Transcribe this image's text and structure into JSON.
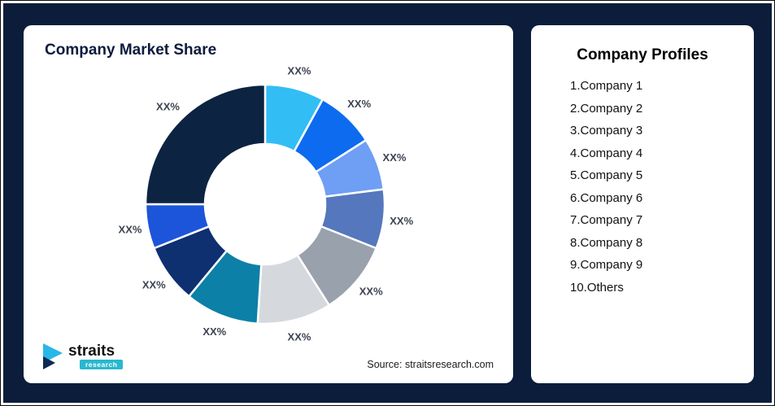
{
  "theme": {
    "background_color": "#0B1D3A",
    "card_color": "#FFFFFF",
    "title_color": "#0D1B3E"
  },
  "left_card": {
    "title": "Company Market Share",
    "source": "Source: straitsresearch.com"
  },
  "logo": {
    "name": "straits",
    "sub": "research",
    "icon_color": "#29B7E8",
    "icon_accent_color": "#0D2A52"
  },
  "profiles": {
    "title": "Company Profiles",
    "items": [
      "1.Company 1",
      "2.Company 2",
      "3.Company 3",
      "4.Company 4",
      "5.Company 5",
      "6.Company 6",
      "7.Company 7",
      "8.Company 8",
      "9.Company 9",
      "10.Others"
    ]
  },
  "chart_data": {
    "type": "pie",
    "subtype": "donut",
    "title": "Company Market Share",
    "labels": [
      "XX%",
      "XX%",
      "XX%",
      "XX%",
      "XX%",
      "XX%",
      "XX%",
      "XX%",
      "XX%",
      "XX%"
    ],
    "values": [
      8,
      8,
      7,
      8,
      10,
      10,
      10,
      8,
      6,
      25
    ],
    "colors": [
      "#33BDF5",
      "#0D6BF0",
      "#6F9EF5",
      "#5577BD",
      "#99A1AD",
      "#D5D9DD",
      "#0C80A6",
      "#0E2F70",
      "#1D55DA",
      "#0D2342"
    ],
    "start_angle_deg": 0,
    "legend_position": "none",
    "annotation": "Slice values hidden; all slices labeled XX%"
  }
}
